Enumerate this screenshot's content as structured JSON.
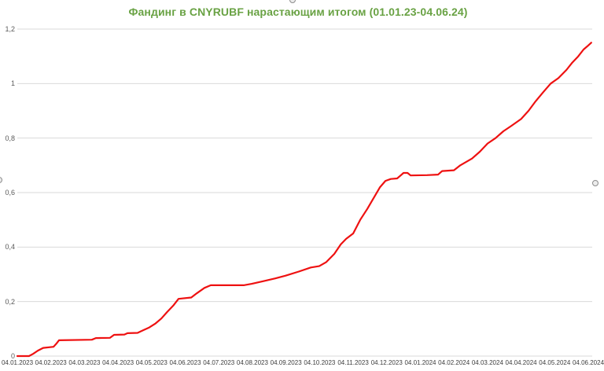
{
  "window": {
    "background_color": "#ffffff"
  },
  "chart_data": {
    "type": "line",
    "title": "Фандинг в CNYRUBF нарастающим итогом  (01.01.23-04.06.24)",
    "title_color": "#69A244",
    "line_color": "#EE1111",
    "grid_color": "#D9D9D9",
    "axis_label_color": "#595959",
    "grid": true,
    "legend": false,
    "xlabel": "",
    "ylabel": "",
    "ylim": [
      0,
      1.2
    ],
    "y_ticks": [
      {
        "label": "0",
        "v": 0
      },
      {
        "label": "0,2",
        "v": 0.2
      },
      {
        "label": "0,4",
        "v": 0.4
      },
      {
        "label": "0,6",
        "v": 0.6
      },
      {
        "label": "0,8",
        "v": 0.8
      },
      {
        "label": "1",
        "v": 1.0
      },
      {
        "label": "1,2",
        "v": 1.2
      }
    ],
    "x_tick_labels": [
      "04.01.2023",
      "04.02.2023",
      "04.03.2023",
      "04.04.2023",
      "04.05.2023",
      "04.06.2023",
      "04.07.2023",
      "04.08.2023",
      "04.09.2023",
      "04.10.2023",
      "04.11.2023",
      "04.12.2023",
      "04.01.2024",
      "04.02.2024",
      "04.03.2024",
      "04.04.2024",
      "04.05.2024",
      "04.06.2024"
    ],
    "values_at_ticks": [
      0,
      0.035,
      0.06,
      0.078,
      0.11,
      0.215,
      0.26,
      0.265,
      0.295,
      0.33,
      0.45,
      0.645,
      0.663,
      0.68,
      0.78,
      0.87,
      1.0,
      1.14
    ],
    "series": [
      {
        "name": "Фандинг CNYRUBF нарастающим итогом",
        "points": [
          [
            0,
            0
          ],
          [
            0.35,
            0
          ],
          [
            0.47,
            0.008
          ],
          [
            0.61,
            0.02
          ],
          [
            0.77,
            0.03
          ],
          [
            1.08,
            0.034
          ],
          [
            1.16,
            0.045
          ],
          [
            1.24,
            0.058
          ],
          [
            2.22,
            0.06
          ],
          [
            2.34,
            0.066
          ],
          [
            2.76,
            0.067
          ],
          [
            2.88,
            0.078
          ],
          [
            3.19,
            0.079
          ],
          [
            3.28,
            0.084
          ],
          [
            3.58,
            0.085
          ],
          [
            3.75,
            0.095
          ],
          [
            3.93,
            0.105
          ],
          [
            4.12,
            0.12
          ],
          [
            4.29,
            0.138
          ],
          [
            4.45,
            0.16
          ],
          [
            4.64,
            0.185
          ],
          [
            4.8,
            0.21
          ],
          [
            5.18,
            0.215
          ],
          [
            5.34,
            0.23
          ],
          [
            5.57,
            0.25
          ],
          [
            5.76,
            0.26
          ],
          [
            6.74,
            0.26
          ],
          [
            6.98,
            0.265
          ],
          [
            7.33,
            0.275
          ],
          [
            7.68,
            0.285
          ],
          [
            7.99,
            0.295
          ],
          [
            8.38,
            0.31
          ],
          [
            8.74,
            0.325
          ],
          [
            8.99,
            0.33
          ],
          [
            9.2,
            0.345
          ],
          [
            9.44,
            0.375
          ],
          [
            9.63,
            0.41
          ],
          [
            9.79,
            0.43
          ],
          [
            10,
            0.45
          ],
          [
            10.21,
            0.5
          ],
          [
            10.42,
            0.54
          ],
          [
            10.61,
            0.58
          ],
          [
            10.8,
            0.62
          ],
          [
            10.96,
            0.643
          ],
          [
            11.12,
            0.65
          ],
          [
            11.31,
            0.652
          ],
          [
            11.5,
            0.672
          ],
          [
            11.62,
            0.672
          ],
          [
            11.71,
            0.663
          ],
          [
            12.2,
            0.664
          ],
          [
            12.53,
            0.666
          ],
          [
            12.65,
            0.679
          ],
          [
            13,
            0.682
          ],
          [
            13.19,
            0.7
          ],
          [
            13.54,
            0.725
          ],
          [
            13.77,
            0.75
          ],
          [
            14,
            0.78
          ],
          [
            14.24,
            0.8
          ],
          [
            14.47,
            0.825
          ],
          [
            14.71,
            0.845
          ],
          [
            15,
            0.87
          ],
          [
            15.22,
            0.9
          ],
          [
            15.43,
            0.935
          ],
          [
            15.67,
            0.97
          ],
          [
            15.88,
            1.0
          ],
          [
            16.11,
            1.02
          ],
          [
            16.35,
            1.05
          ],
          [
            16.51,
            1.075
          ],
          [
            16.7,
            1.1
          ],
          [
            16.86,
            1.125
          ],
          [
            17,
            1.14
          ],
          [
            17.09,
            1.15
          ]
        ]
      }
    ]
  }
}
